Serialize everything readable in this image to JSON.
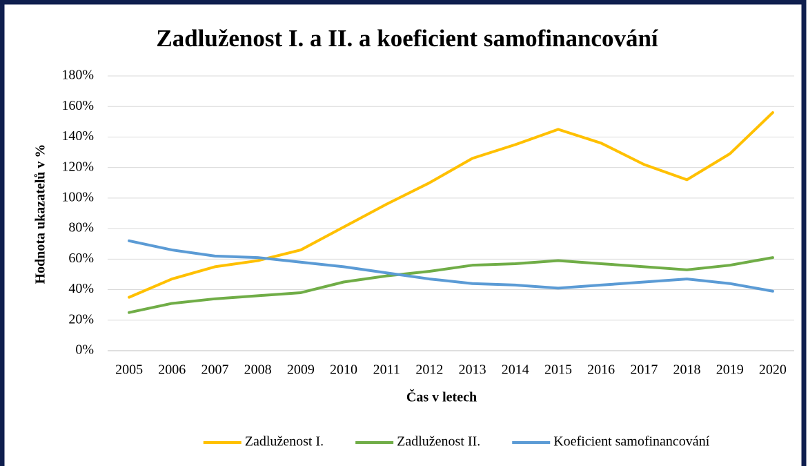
{
  "chart_data": {
    "type": "line",
    "title": "Zadluženost I. a II. a koeficient samofinancování",
    "x_label": "Čas v letech",
    "y_label": "Hodnota ukazatelů v %",
    "categories": [
      "2005",
      "2006",
      "2007",
      "2008",
      "2009",
      "2010",
      "2011",
      "2012",
      "2013",
      "2014",
      "2015",
      "2016",
      "2017",
      "2018",
      "2019",
      "2020"
    ],
    "series": [
      {
        "name": "Zadluženost I.",
        "color": "#ffc000",
        "values": [
          35,
          47,
          55,
          59,
          66,
          81,
          96,
          110,
          126,
          135,
          145,
          136,
          122,
          112,
          129,
          156
        ]
      },
      {
        "name": "Zadluženost II.",
        "color": "#70ad47",
        "values": [
          25,
          31,
          34,
          36,
          38,
          45,
          49,
          52,
          56,
          57,
          59,
          57,
          55,
          53,
          56,
          61
        ]
      },
      {
        "name": "Koeficient samofinancování",
        "color": "#5b9bd5",
        "values": [
          72,
          66,
          62,
          61,
          58,
          55,
          51,
          47,
          44,
          43,
          41,
          43,
          45,
          47,
          44,
          39
        ]
      }
    ],
    "ylim": [
      0,
      180
    ],
    "yticks": [
      {
        "value": 0,
        "label": "0%"
      },
      {
        "value": 20,
        "label": "20%"
      },
      {
        "value": 40,
        "label": "40%"
      },
      {
        "value": 60,
        "label": "60%"
      },
      {
        "value": 80,
        "label": "80%"
      },
      {
        "value": 100,
        "label": "100%"
      },
      {
        "value": 120,
        "label": "120%"
      },
      {
        "value": 140,
        "label": "140%"
      },
      {
        "value": 160,
        "label": "160%"
      },
      {
        "value": 180,
        "label": "180%"
      }
    ],
    "grid": true,
    "legend": "bottom"
  }
}
